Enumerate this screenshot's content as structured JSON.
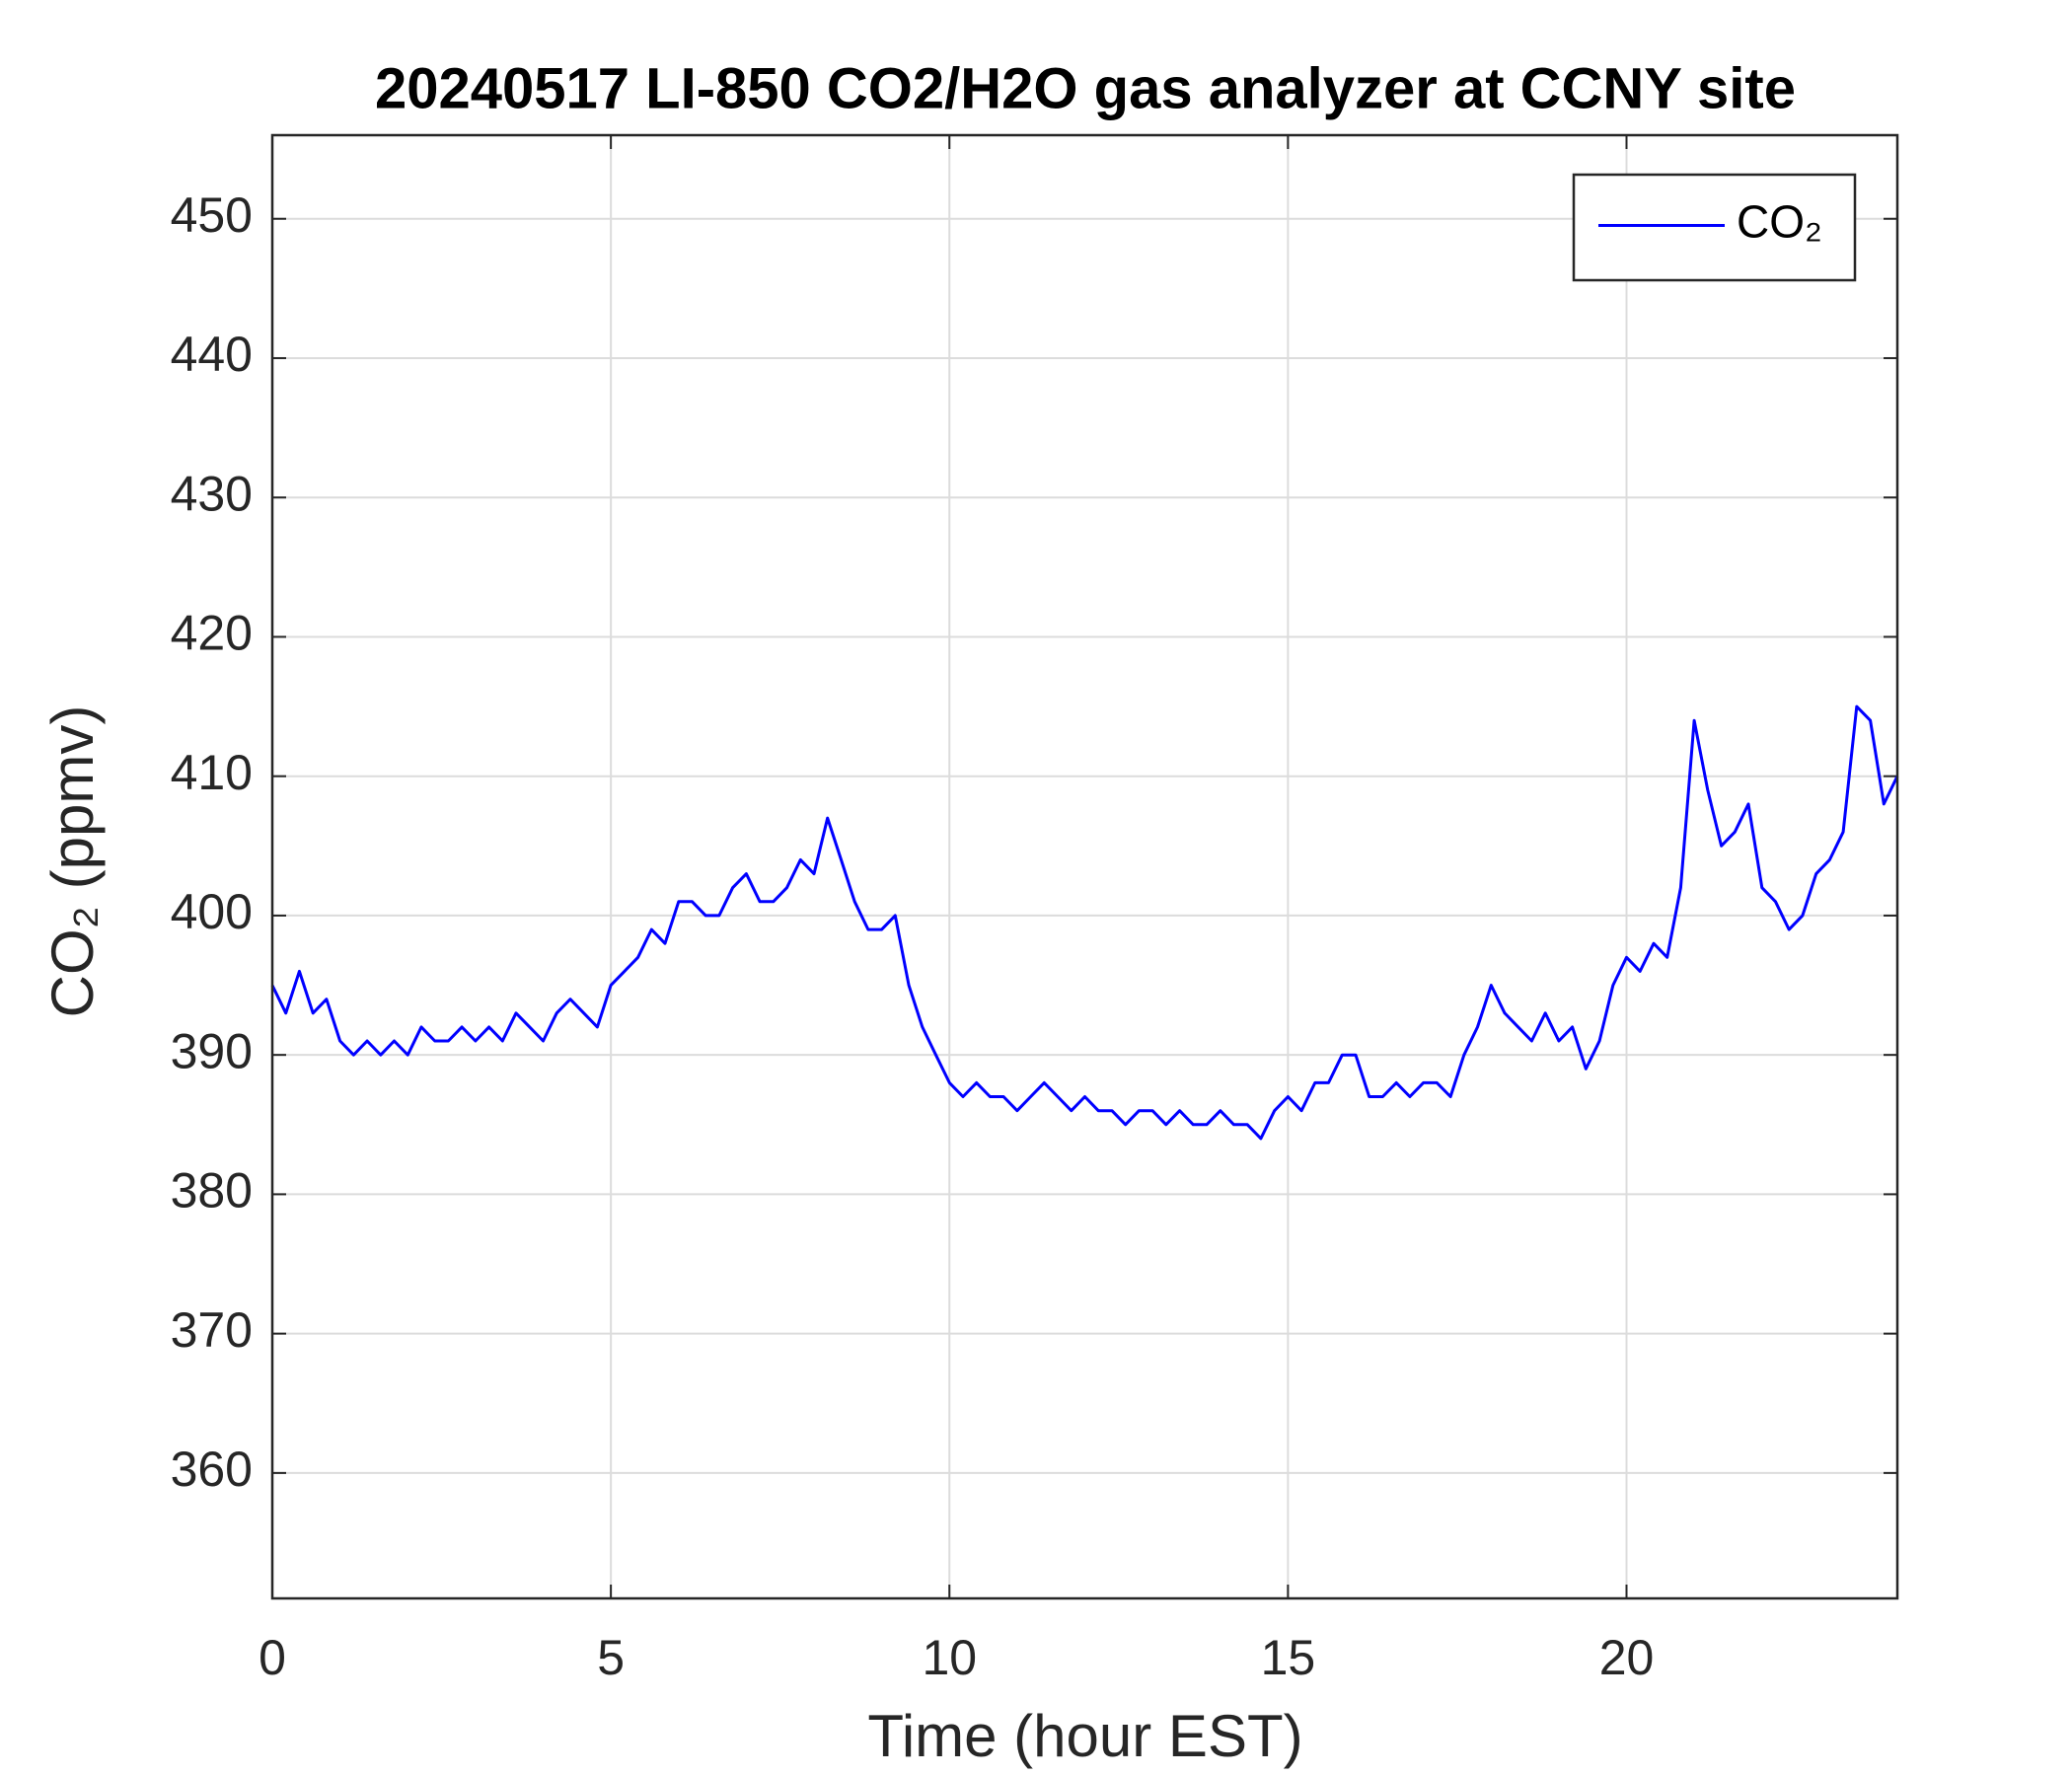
{
  "chart_data": {
    "type": "line",
    "title": "20240517 LI-850 CO2/H2O gas analyzer at CCNY site",
    "x_label": "Time (hour EST)",
    "y_label": "CO₂ (ppmv)",
    "xlim": [
      0,
      24
    ],
    "xticks": [
      0,
      5,
      10,
      15,
      20
    ],
    "ylim": [
      351,
      456
    ],
    "yticks": [
      360,
      370,
      380,
      390,
      400,
      410,
      420,
      430,
      440,
      450
    ],
    "grid": true,
    "legend": "northeast",
    "x": [
      0,
      0.2,
      0.4,
      0.6,
      0.8,
      1,
      1.2,
      1.4,
      1.6,
      1.8,
      2,
      2.2,
      2.4,
      2.6,
      2.8,
      3,
      3.2,
      3.4,
      3.6,
      3.8,
      4,
      4.2,
      4.4,
      4.6,
      4.8,
      5,
      5.2,
      5.4,
      5.6,
      5.8,
      6,
      6.2,
      6.4,
      6.6,
      6.8,
      7,
      7.2,
      7.4,
      7.6,
      7.8,
      8,
      8.2,
      8.4,
      8.6,
      8.8,
      9,
      9.2,
      9.4,
      9.6,
      9.8,
      10,
      10.2,
      10.4,
      10.6,
      10.8,
      11,
      11.2,
      11.4,
      11.6,
      11.8,
      12,
      12.2,
      12.4,
      12.6,
      12.8,
      13,
      13.2,
      13.4,
      13.6,
      13.8,
      14,
      14.2,
      14.4,
      14.6,
      14.8,
      15,
      15.2,
      15.4,
      15.6,
      15.8,
      16,
      16.2,
      16.4,
      16.6,
      16.8,
      17,
      17.2,
      17.4,
      17.6,
      17.8,
      18,
      18.2,
      18.4,
      18.6,
      18.8,
      19,
      19.2,
      19.4,
      19.6,
      19.8,
      20,
      20.2,
      20.4,
      20.6,
      20.8,
      21,
      21.2,
      21.4,
      21.6,
      21.8,
      22,
      22.2,
      22.4,
      22.6,
      22.8,
      23,
      23.2,
      23.4,
      23.6,
      23.8,
      24
    ],
    "series": [
      {
        "name": "CO₂",
        "color": "#0000ff",
        "values": [
          395,
          393,
          396,
          393,
          394,
          391,
          390,
          391,
          390,
          391,
          390,
          392,
          391,
          391,
          392,
          391,
          392,
          391,
          393,
          392,
          391,
          393,
          394,
          393,
          392,
          395,
          396,
          397,
          399,
          398,
          401,
          401,
          400,
          400,
          402,
          403,
          401,
          401,
          402,
          404,
          403,
          407,
          404,
          401,
          399,
          399,
          400,
          395,
          392,
          390,
          388,
          387,
          388,
          387,
          387,
          386,
          387,
          388,
          387,
          386,
          387,
          386,
          386,
          385,
          386,
          386,
          385,
          386,
          385,
          385,
          386,
          385,
          385,
          384,
          386,
          387,
          386,
          388,
          388,
          390,
          390,
          387,
          387,
          388,
          387,
          388,
          388,
          387,
          390,
          392,
          395,
          393,
          392,
          391,
          393,
          391,
          392,
          389,
          391,
          395,
          397,
          396,
          398,
          397,
          402,
          414,
          409,
          405,
          406,
          408,
          402,
          401,
          399,
          400,
          403,
          404,
          406,
          415,
          414,
          408,
          410
        ]
      }
    ]
  }
}
